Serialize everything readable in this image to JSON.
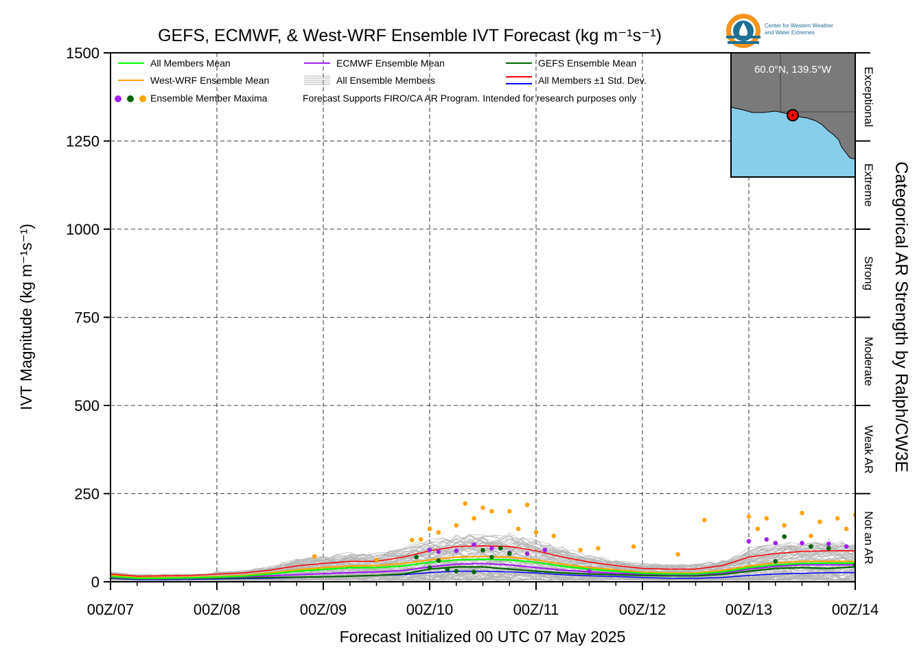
{
  "chart_data": {
    "type": "line",
    "title": "GEFS, ECMWF, & West-WRF Ensemble IVT Forecast (kg m⁻¹s⁻¹)",
    "xlabel": "Forecast Initialized 00 UTC 07 May 2025",
    "ylabel": "IVT Magnitude (kg m⁻¹s⁻¹)",
    "right_label": "Categorical AR Strength by Ralph/CW3E",
    "ylim": [
      0,
      1500
    ],
    "yticks": [
      0,
      250,
      500,
      750,
      1000,
      1250,
      1500
    ],
    "xlim": [
      0,
      168
    ],
    "xticks": [
      {
        "h": 0,
        "label": "00Z/07"
      },
      {
        "h": 24,
        "label": "00Z/08"
      },
      {
        "h": 48,
        "label": "00Z/09"
      },
      {
        "h": 72,
        "label": "00Z/10"
      },
      {
        "h": 96,
        "label": "00Z/11"
      },
      {
        "h": 120,
        "label": "00Z/12"
      },
      {
        "h": 144,
        "label": "00Z/13"
      },
      {
        "h": 168,
        "label": "00Z/14"
      }
    ],
    "grid": true,
    "categories": [
      {
        "label": "Not an AR",
        "range": [
          0,
          250
        ]
      },
      {
        "label": "Weak AR",
        "range": [
          250,
          500
        ]
      },
      {
        "label": "Moderate",
        "range": [
          500,
          750
        ]
      },
      {
        "label": "Strong",
        "range": [
          750,
          1000
        ]
      },
      {
        "label": "Extreme",
        "range": [
          1000,
          1250
        ]
      },
      {
        "label": "Exceptional",
        "range": [
          1250,
          1500
        ]
      }
    ],
    "legend": {
      "placement": "top-left",
      "entries": [
        {
          "label": "All Members Mean",
          "color": "#00ff00"
        },
        {
          "label": "ECMWF Ensemble Mean",
          "color": "#a020f0"
        },
        {
          "label": "GEFS Ensemble Mean",
          "color": "#006400"
        },
        {
          "label": "West-WRF Ensemble Mean",
          "color": "#ffa500"
        },
        {
          "label": "All Ensemble Members",
          "color": "#b0b0b0"
        },
        {
          "label": "All Members ±1 Std. Dev.",
          "color": "#ff0000",
          "color2": "#0000ff"
        },
        {
          "label": "Ensemble Member Maxima",
          "colors": [
            "#a020f0",
            "#006400",
            "#ffa500"
          ]
        }
      ],
      "note": "Forecast Supports FIRO/CA AR Program. Intended for research purposes only"
    },
    "series": [
      {
        "name": "All Members Mean",
        "color": "#00ff00",
        "x": [
          0,
          6,
          12,
          18,
          24,
          30,
          36,
          42,
          48,
          54,
          60,
          66,
          72,
          78,
          84,
          90,
          96,
          102,
          108,
          114,
          120,
          126,
          132,
          138,
          144,
          150,
          156,
          162,
          168
        ],
        "y": [
          15,
          10,
          10,
          11,
          13,
          16,
          22,
          30,
          35,
          40,
          40,
          45,
          55,
          62,
          64,
          62,
          55,
          44,
          36,
          30,
          24,
          22,
          22,
          28,
          40,
          48,
          52,
          53,
          53
        ]
      },
      {
        "name": "ECMWF Ensemble Mean",
        "color": "#a020f0",
        "x": [
          0,
          6,
          12,
          18,
          24,
          30,
          36,
          42,
          48,
          54,
          60,
          66,
          72,
          78,
          84,
          90,
          96,
          102,
          108,
          114,
          120,
          126,
          132,
          138,
          144,
          150,
          156,
          162,
          168
        ],
        "y": [
          13,
          9,
          9,
          10,
          12,
          14,
          17,
          20,
          23,
          26,
          28,
          32,
          42,
          50,
          52,
          48,
          40,
          33,
          28,
          24,
          22,
          20,
          20,
          25,
          36,
          44,
          48,
          48,
          48
        ]
      },
      {
        "name": "GEFS Ensemble Mean",
        "color": "#006400",
        "x": [
          0,
          6,
          12,
          18,
          24,
          30,
          36,
          42,
          48,
          54,
          60,
          66,
          72,
          78,
          84,
          90,
          96,
          102,
          108,
          114,
          120,
          126,
          132,
          138,
          144,
          150,
          156,
          162,
          168
        ],
        "y": [
          11,
          8,
          8,
          9,
          10,
          11,
          12,
          13,
          14,
          16,
          18,
          22,
          36,
          42,
          42,
          36,
          30,
          25,
          22,
          20,
          18,
          17,
          17,
          21,
          30,
          38,
          40,
          38,
          42
        ]
      },
      {
        "name": "West-WRF Ensemble Mean",
        "color": "#ffa500",
        "x": [
          0,
          6,
          12,
          18,
          24,
          30,
          36,
          42,
          48,
          54,
          60,
          66,
          72,
          78,
          84,
          90,
          96,
          102,
          108,
          114,
          120,
          126,
          132,
          138,
          144,
          150,
          156,
          162,
          168
        ],
        "y": [
          18,
          12,
          12,
          13,
          15,
          18,
          25,
          34,
          40,
          45,
          46,
          52,
          62,
          70,
          72,
          70,
          62,
          50,
          40,
          34,
          27,
          25,
          25,
          32,
          45,
          54,
          58,
          58,
          58
        ]
      },
      {
        "name": "All Members +1 Std. Dev.",
        "color": "#ff0000",
        "x": [
          0,
          6,
          12,
          18,
          24,
          30,
          36,
          42,
          48,
          54,
          60,
          66,
          72,
          78,
          84,
          90,
          96,
          102,
          108,
          114,
          120,
          126,
          132,
          138,
          144,
          150,
          156,
          162,
          168
        ],
        "y": [
          22,
          16,
          17,
          18,
          22,
          25,
          33,
          45,
          52,
          58,
          58,
          70,
          88,
          100,
          102,
          100,
          88,
          70,
          56,
          46,
          38,
          36,
          36,
          46,
          70,
          80,
          86,
          88,
          88
        ]
      },
      {
        "name": "All Members -1 Std. Dev.",
        "color": "#0000ff",
        "x": [
          0,
          6,
          12,
          18,
          24,
          30,
          36,
          42,
          48,
          54,
          60,
          66,
          72,
          78,
          84,
          90,
          96,
          102,
          108,
          114,
          120,
          126,
          132,
          138,
          144,
          150,
          156,
          162,
          168
        ],
        "y": [
          10,
          6,
          6,
          7,
          8,
          9,
          10,
          12,
          14,
          16,
          18,
          20,
          26,
          30,
          30,
          28,
          25,
          20,
          17,
          15,
          12,
          10,
          10,
          12,
          18,
          22,
          24,
          26,
          26
        ]
      }
    ],
    "member_maxima": [
      {
        "model": "West-WRF",
        "color": "#ffa500",
        "points": [
          [
            46,
            72
          ],
          [
            60,
            62
          ],
          [
            68,
            118
          ],
          [
            70,
            120
          ],
          [
            72,
            150
          ],
          [
            74,
            140
          ],
          [
            78,
            160
          ],
          [
            80,
            222
          ],
          [
            82,
            180
          ],
          [
            84,
            210
          ],
          [
            86,
            200
          ],
          [
            90,
            200
          ],
          [
            94,
            218
          ],
          [
            92,
            150
          ],
          [
            96,
            140
          ],
          [
            100,
            130
          ],
          [
            106,
            90
          ],
          [
            110,
            95
          ],
          [
            118,
            100
          ],
          [
            128,
            78
          ],
          [
            134,
            175
          ],
          [
            144,
            185
          ],
          [
            148,
            180
          ],
          [
            152,
            160
          ],
          [
            156,
            195
          ],
          [
            160,
            170
          ],
          [
            164,
            180
          ],
          [
            168,
            190
          ],
          [
            146,
            150
          ],
          [
            158,
            130
          ],
          [
            166,
            150
          ]
        ]
      },
      {
        "model": "ECMWF",
        "color": "#a020f0",
        "points": [
          [
            72,
            90
          ],
          [
            74,
            85
          ],
          [
            78,
            88
          ],
          [
            82,
            105
          ],
          [
            86,
            95
          ],
          [
            90,
            82
          ],
          [
            94,
            80
          ],
          [
            98,
            90
          ],
          [
            108,
            30
          ],
          [
            144,
            115
          ],
          [
            148,
            120
          ],
          [
            150,
            110
          ],
          [
            152,
            128
          ],
          [
            156,
            110
          ],
          [
            162,
            108
          ],
          [
            166,
            100
          ],
          [
            170,
            118
          ]
        ]
      },
      {
        "model": "GEFS",
        "color": "#006400",
        "points": [
          [
            69,
            70
          ],
          [
            72,
            40
          ],
          [
            74,
            60
          ],
          [
            76,
            35
          ],
          [
            78,
            30
          ],
          [
            82,
            28
          ],
          [
            84,
            90
          ],
          [
            86,
            70
          ],
          [
            88,
            95
          ],
          [
            90,
            80
          ],
          [
            150,
            58
          ],
          [
            152,
            128
          ],
          [
            158,
            100
          ],
          [
            162,
            95
          ],
          [
            168,
            48
          ]
        ]
      }
    ],
    "inset_map": {
      "label": "60.0°N, 139.5°W",
      "land_color": "#7a7a7a",
      "water_color": "#87ceeb"
    },
    "logo_text": [
      "Center for Western Weather",
      "and Water Extremes"
    ]
  }
}
